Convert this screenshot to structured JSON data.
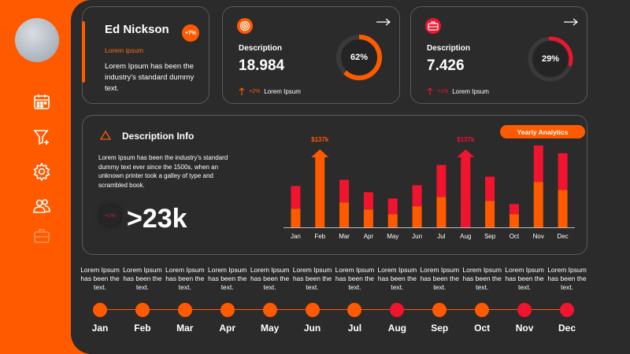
{
  "profile": {
    "name": "Ed Nickson",
    "badge": "+7%",
    "subtitle": "Lorem ipsum",
    "text": "Lorem Ipsum has been the industry's standard dummy text."
  },
  "stats": [
    {
      "label": "Description",
      "value": "18.984",
      "change": "+2%",
      "foot": "Lorem Ipsum",
      "percent_text": "62%",
      "percent": 62,
      "color": "#ff5a00",
      "icon": "target-icon"
    },
    {
      "label": "Description",
      "value": "7.426",
      "change": "+1%",
      "foot": "Lorem Ipsum",
      "percent_text": "29%",
      "percent": 29,
      "color": "#f0142f",
      "icon": "briefcase-icon"
    }
  ],
  "info": {
    "title": "Description Info",
    "text": "Lorem Ipsum has been the industry's standard dummy text ever since the 1500s, when an unknown printer took a galley of type and scrambled book.",
    "small_pct": "+1%",
    "big_value": ">23k",
    "button": "Yearly Analytics"
  },
  "chart_data": {
    "type": "bar",
    "stacked": true,
    "categories": [
      "Jan",
      "Feb",
      "Mar",
      "Apr",
      "May",
      "Jun",
      "Jul",
      "Aug",
      "Sep",
      "Oct",
      "Nov",
      "Dec"
    ],
    "series": [
      {
        "values": [
          24,
          0,
          32,
          23,
          17,
          27,
          39,
          32,
          34,
          17,
          58,
          48
        ],
        "color": "#ff5a00"
      },
      {
        "values": [
          29,
          0,
          29,
          22,
          20,
          27,
          41,
          46,
          31,
          13,
          47,
          47
        ],
        "color": "#f0142f"
      }
    ],
    "annotations": [
      {
        "category": "Feb",
        "label": "$137k",
        "value": 100,
        "color": "#ff5a00"
      },
      {
        "category": "Aug",
        "label": "$137k",
        "value": 100,
        "color": "#f0142f"
      }
    ],
    "ylim": [
      0,
      115
    ]
  },
  "timeline": {
    "items": [
      {
        "month": "Jan",
        "text": "Lorem Ipsum has been the text.",
        "color": "#ff5a00"
      },
      {
        "month": "Feb",
        "text": "Lorem Ipsum has been the text.",
        "color": "#ff5a00"
      },
      {
        "month": "Mar",
        "text": "Lorem Ipsum has been the text.",
        "color": "#ff5a00"
      },
      {
        "month": "Apr",
        "text": "Lorem Ipsum has been the text.",
        "color": "#ff5a00"
      },
      {
        "month": "May",
        "text": "Lorem Ipsum has been the text.",
        "color": "#ff5a00"
      },
      {
        "month": "Jun",
        "text": "Lorem Ipsum has been the text.",
        "color": "#ff5a00"
      },
      {
        "month": "Jul",
        "text": "Lorem Ipsum has been the text.",
        "color": "#ff5a00"
      },
      {
        "month": "Aug",
        "text": "Lorem Ipsum has been the text.",
        "color": "#f0142f"
      },
      {
        "month": "Sep",
        "text": "Lorem Ipsum has been the text.",
        "color": "#ff5a00"
      },
      {
        "month": "Oct",
        "text": "Lorem Ipsum has been the text.",
        "color": "#ff5a00"
      },
      {
        "month": "Nov",
        "text": "Lorem Ipsum has been the text.",
        "color": "#f0142f"
      },
      {
        "month": "Dec",
        "text": "Lorem Ipsum has been the text.",
        "color": "#f0142f"
      }
    ]
  },
  "sidebar": {
    "icons": [
      "calendar-icon",
      "funnel-icon",
      "gear-icon",
      "users-icon",
      "briefcase-icon"
    ]
  },
  "colors": {
    "accent": "#ff5a00",
    "accent_red": "#f0142f",
    "panel": "#2b2b2b"
  }
}
